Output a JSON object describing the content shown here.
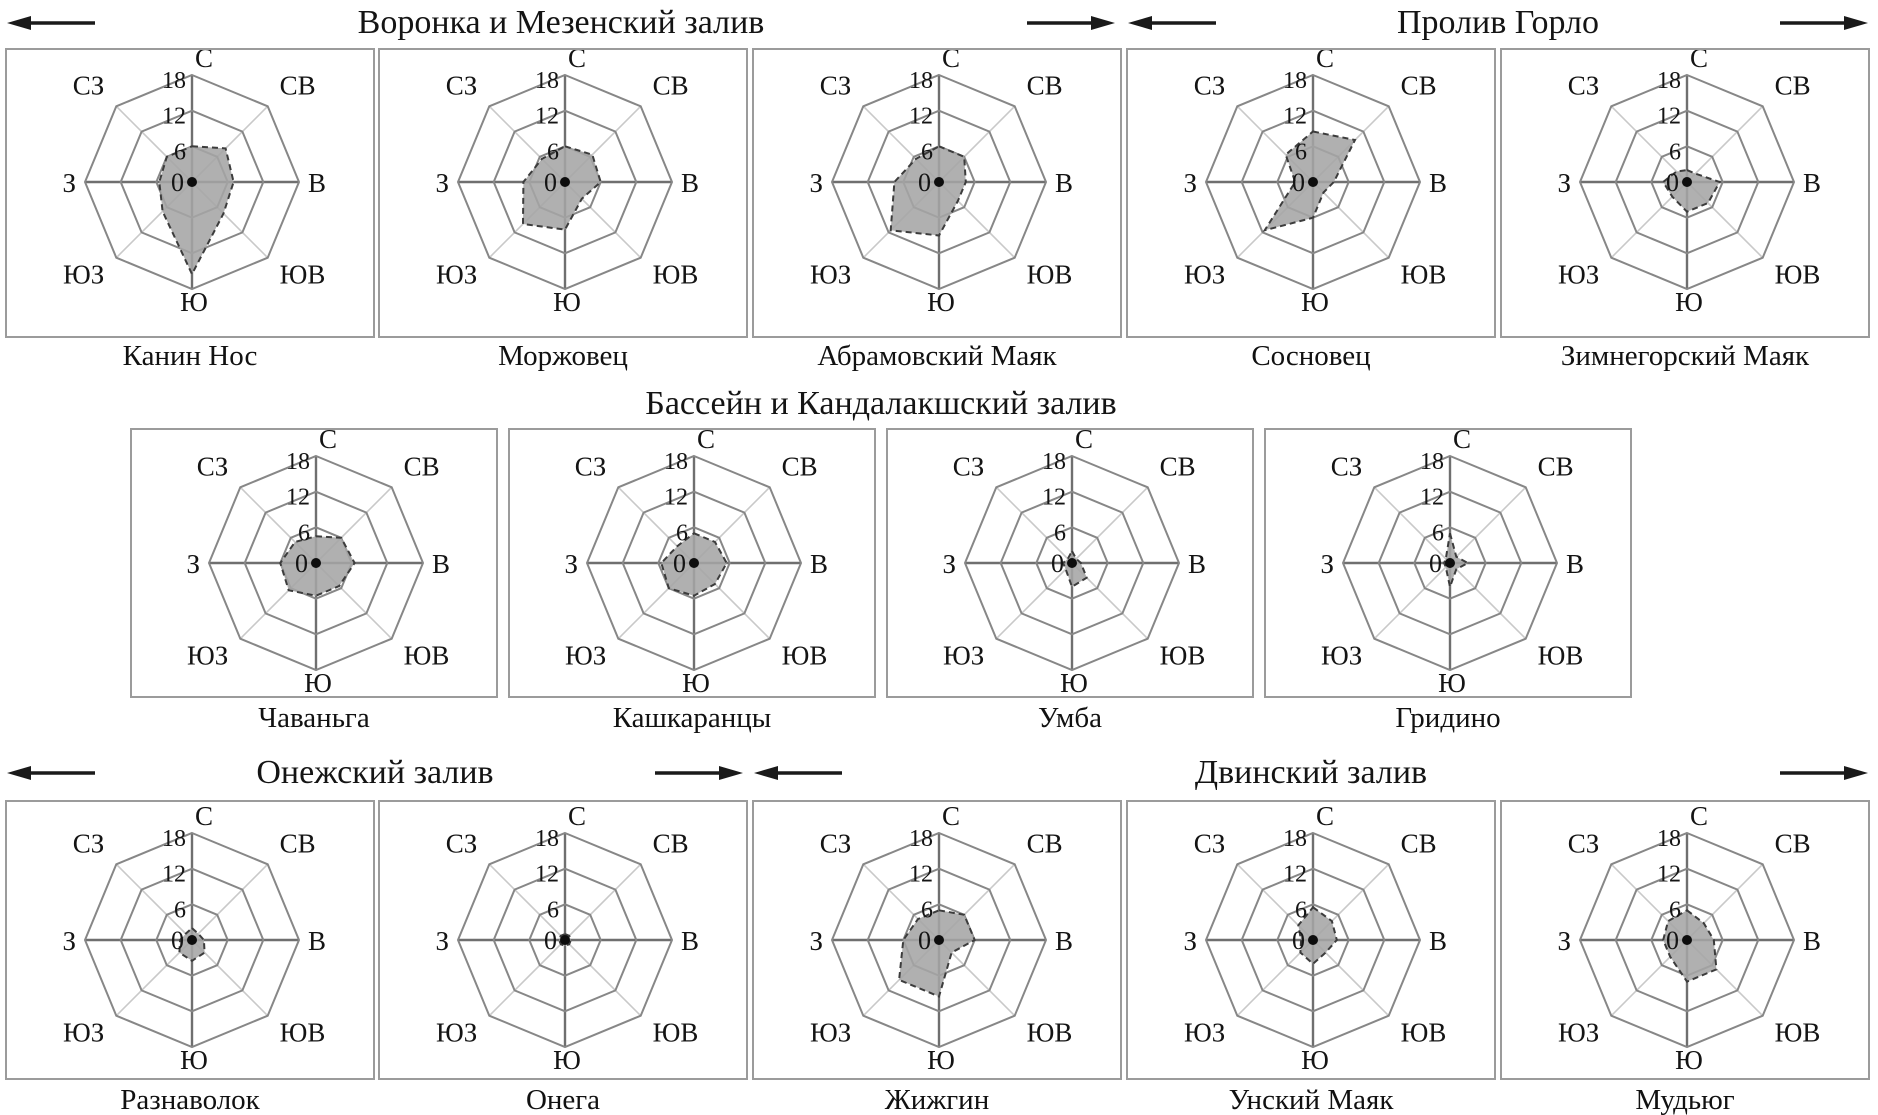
{
  "figure_title": "Wind-rose style radar charts of White Sea stations",
  "colors": {
    "background": "#ffffff",
    "box_border": "#9b9b9b",
    "ring": "#878787",
    "spoke_diagonal": "#c9c9c9",
    "spoke_main": "#6f6f6f",
    "polygon_fill": "#a5a5a5",
    "polygon_outline": "#3c3c3c",
    "text": "#141414"
  },
  "chart_data": {
    "type": "radar",
    "directions": [
      "С",
      "СВ",
      "В",
      "ЮВ",
      "Ю",
      "ЮЗ",
      "З",
      "СЗ"
    ],
    "radial_ticks": [
      "0",
      "6",
      "12",
      "18"
    ],
    "rings": [
      6,
      12,
      18
    ],
    "rmax": 18,
    "legend_position": "none",
    "grid": "octagonal",
    "header_groups": [
      {
        "title": "Воронка и Мезенский залив",
        "arrow_left": true,
        "arrow_right": true
      },
      {
        "title": "Пролив Горло",
        "arrow_left": true,
        "arrow_right": true
      },
      {
        "title": "Бассейн и Кандалакшский залив",
        "arrow_left": false,
        "arrow_right": false
      },
      {
        "title": "Онежский залив",
        "arrow_left": true,
        "arrow_right": true
      },
      {
        "title": "Двинский залив",
        "arrow_left": true,
        "arrow_right": true
      }
    ],
    "stations": [
      {
        "name": "Канин Нос",
        "region": "Воронка и Мезенский залив",
        "values": [
          6,
          8,
          7,
          7.5,
          15.5,
          7,
          5.5,
          6
        ]
      },
      {
        "name": "Моржовец",
        "region": "Воронка и Мезенский залив",
        "values": [
          6,
          6.5,
          6,
          4,
          8,
          10,
          7,
          5.5
        ]
      },
      {
        "name": "Абрамовский Маяк",
        "region": "Воронка и Мезенский залив",
        "values": [
          6,
          6,
          4.5,
          4.5,
          9,
          11.5,
          7.5,
          5.5
        ]
      },
      {
        "name": "Сосновец",
        "region": "Пролив Горло",
        "values": [
          8.5,
          10,
          3.5,
          2.5,
          6,
          11.5,
          3,
          6.5
        ]
      },
      {
        "name": "Зимнегорский Маяк",
        "region": "Пролив Горло",
        "values": [
          2,
          2,
          5.5,
          5,
          5,
          3.5,
          4,
          2.5
        ]
      },
      {
        "name": "Чаваньга",
        "region": "Бассейн и Кандалакшский залив",
        "values": [
          4.5,
          6,
          6.5,
          5.5,
          5.5,
          6.5,
          6,
          5
        ]
      },
      {
        "name": "Кашкаранцы",
        "region": "Бассейн и Кандалакшский залив",
        "values": [
          5,
          5,
          5.5,
          5,
          5.5,
          6,
          5.5,
          4
        ]
      },
      {
        "name": "Умба",
        "region": "Бассейн и Кандалакшский залив",
        "values": [
          2,
          1,
          1.5,
          3.5,
          4,
          1.5,
          1.5,
          1
        ]
      },
      {
        "name": "Гридино",
        "region": "Бассейн и Кандалакшский залив",
        "values": [
          5,
          1.5,
          3,
          1.5,
          4,
          1,
          1,
          1
        ]
      },
      {
        "name": "Разнаволок",
        "region": "Онежский залив",
        "values": [
          2,
          1.5,
          2,
          3,
          3.5,
          3,
          2,
          1.5
        ]
      },
      {
        "name": "Онега",
        "region": "Онежский залив",
        "values": [
          1,
          1,
          1,
          1,
          1,
          1,
          1,
          1
        ]
      },
      {
        "name": "Жижгин",
        "region": "Двинский залив",
        "values": [
          5,
          6,
          6,
          3,
          9.5,
          9.5,
          6,
          5
        ]
      },
      {
        "name": "Унский Маяк",
        "region": "Двинский залив",
        "values": [
          5.5,
          4.5,
          4,
          3,
          4,
          3,
          2,
          3.5
        ]
      },
      {
        "name": "Мудьюг",
        "region": "Двинский залив",
        "values": [
          5,
          4,
          4.5,
          7,
          7,
          4,
          4,
          4.5
        ]
      }
    ]
  }
}
